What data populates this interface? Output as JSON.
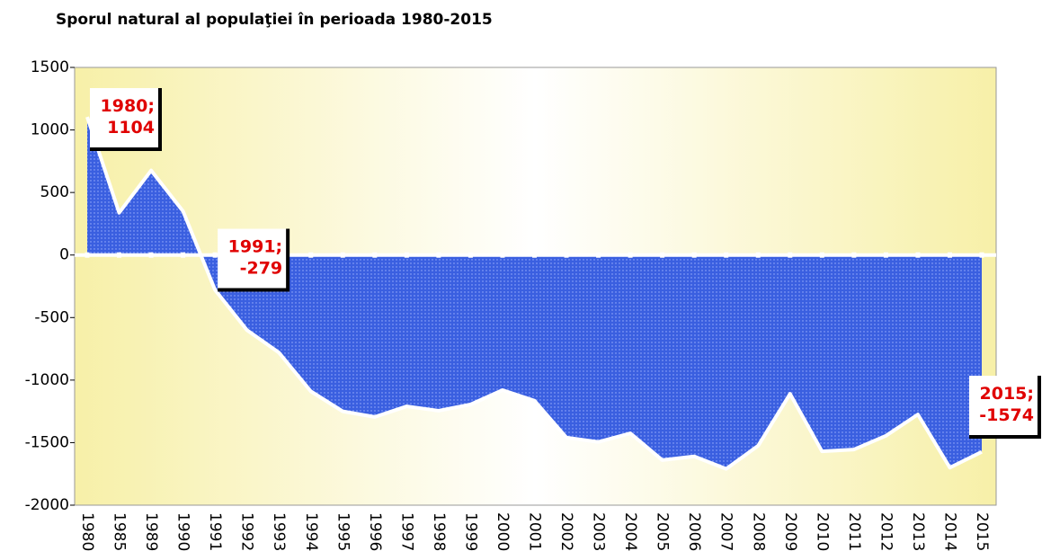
{
  "chart_data": {
    "type": "area",
    "title": "Sporul natural al populaţiei în perioada 1980-2015",
    "categories": [
      "1980",
      "1985",
      "1989",
      "1990",
      "1991",
      "1992",
      "1993",
      "1994",
      "1995",
      "1996",
      "1997",
      "1998",
      "1999",
      "2000",
      "2001",
      "2002",
      "2003",
      "2004",
      "2005",
      "2006",
      "2007",
      "2008",
      "2009",
      "2010",
      "2011",
      "2012",
      "2013",
      "2014",
      "2015"
    ],
    "values": [
      1104,
      338,
      676,
      350,
      -279,
      -600,
      -780,
      -1090,
      -1250,
      -1295,
      -1210,
      -1245,
      -1195,
      -1080,
      -1165,
      -1460,
      -1495,
      -1425,
      -1640,
      -1610,
      -1710,
      -1525,
      -1110,
      -1570,
      -1555,
      -1445,
      -1275,
      -1700,
      -1574
    ],
    "value_labels": [
      "1980; 1104",
      null,
      null,
      null,
      "1991; -279",
      null,
      null,
      null,
      null,
      null,
      null,
      null,
      null,
      null,
      null,
      null,
      null,
      null,
      null,
      null,
      null,
      null,
      null,
      null,
      null,
      null,
      null,
      null,
      "2015; -1574"
    ],
    "color": "#3a5fe0",
    "ylim": [
      -2000,
      1500
    ],
    "yticks": [
      -2000,
      -1500,
      -1000,
      -500,
      0,
      500,
      1000,
      1500
    ]
  }
}
